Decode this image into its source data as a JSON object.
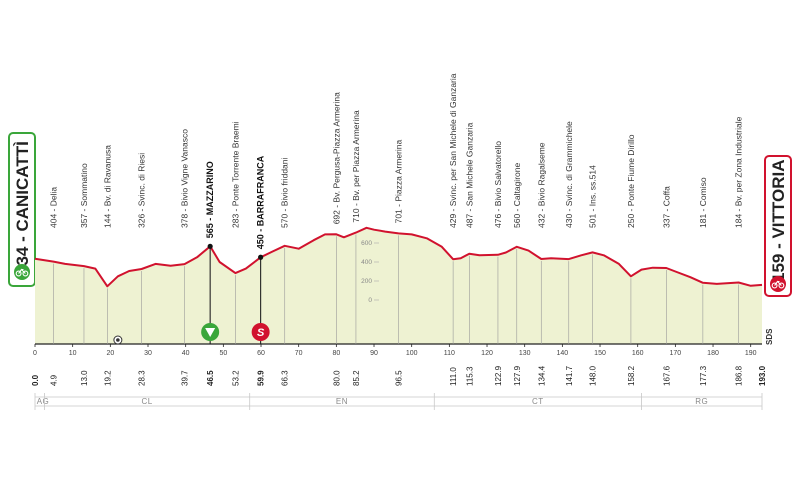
{
  "start": {
    "altitude": "434",
    "name": "CANICATTÌ",
    "label": "434 - CANICATTÌ"
  },
  "finish": {
    "altitude": "159",
    "name": "VITTORIA",
    "label": "159 - VITTORIA"
  },
  "sds_label": "SDS",
  "colors": {
    "profile_fill": "#eef2d2",
    "profile_line": "#d1122e",
    "start_border": "#3aa63a",
    "finish_border": "#d1122e"
  },
  "chart_data": {
    "type": "area",
    "title": "",
    "xlabel": "",
    "ylabel": "",
    "xlim": [
      0,
      193
    ],
    "x_ticks": [
      0,
      10,
      20,
      30,
      40,
      50,
      60,
      70,
      80,
      90,
      100,
      110,
      120,
      130,
      140,
      150,
      160,
      170,
      180,
      190
    ],
    "x_tick_labels": [
      "0",
      "10",
      "20",
      "30",
      "40",
      "50",
      "60",
      "70",
      "80",
      "90",
      "100",
      "110",
      "120",
      "130",
      "140",
      "150",
      "160",
      "170",
      "180",
      "190"
    ],
    "elevation_ticks": [
      "600",
      "400",
      "200",
      "0"
    ],
    "profile": {
      "km": [
        0,
        4.9,
        8,
        13,
        16,
        19.2,
        22,
        25,
        28.3,
        32,
        36,
        39.7,
        43,
        46.5,
        49,
        53.2,
        56,
        59.9,
        63,
        66.3,
        70,
        74,
        77,
        80,
        82,
        85.2,
        88,
        90,
        93,
        96.5,
        100,
        104,
        108,
        111,
        113,
        115.3,
        118,
        122.9,
        125,
        127.9,
        131,
        134.4,
        137,
        141.7,
        145,
        148,
        151,
        155,
        158.2,
        161,
        164,
        167.6,
        170,
        174,
        177.3,
        181,
        186.8,
        190,
        193
      ],
      "elev": [
        434,
        404,
        380,
        357,
        330,
        144,
        250,
        305,
        326,
        380,
        360,
        378,
        450,
        565,
        400,
        283,
        330,
        450,
        510,
        570,
        540,
        630,
        690,
        692,
        660,
        710,
        760,
        740,
        720,
        701,
        690,
        650,
        560,
        429,
        440,
        487,
        470,
        476,
        500,
        560,
        520,
        432,
        440,
        430,
        470,
        501,
        470,
        380,
        250,
        320,
        340,
        337,
        300,
        240,
        181,
        170,
        184,
        150,
        159
      ]
    },
    "waypoints": [
      {
        "km": 4.9,
        "label": "404 - Delia"
      },
      {
        "km": 13.0,
        "label": "357 - Sommatino"
      },
      {
        "km": 19.2,
        "label": "144 - Bv. di Ravanusa"
      },
      {
        "km": 28.3,
        "label": "326 - Svinc. di Riesi"
      },
      {
        "km": 39.7,
        "label": "378 - Bivio Vigne Vanasco"
      },
      {
        "km": 46.5,
        "label": "565 - MAZZARINO",
        "bold": true,
        "marker": "sprint"
      },
      {
        "km": 53.2,
        "label": "283 - Ponte Torrente Braemi"
      },
      {
        "km": 59.9,
        "label": "450 - BARRAFRANCA",
        "bold": true,
        "marker": "sprint"
      },
      {
        "km": 66.3,
        "label": "570 - Bivio friddani"
      },
      {
        "km": 80.0,
        "label": "692 - Bv. Pergusa-Piazza Armerina"
      },
      {
        "km": 85.2,
        "label": "710 - Bv. per Piazza Armerina"
      },
      {
        "km": 96.5,
        "label": "701 - Piazza Armerina"
      },
      {
        "km": 111.0,
        "label": "429 - Svinc. per San Michele di Ganzaria"
      },
      {
        "km": 115.3,
        "label": "487 - San Michele Ganzaria"
      },
      {
        "km": 122.9,
        "label": "476 - Bivio Salvatorello"
      },
      {
        "km": 127.9,
        "label": "560 - Caltagirone"
      },
      {
        "km": 134.4,
        "label": "432 - Bivio Ragalseme"
      },
      {
        "km": 141.7,
        "label": "430 - Svinc. di Grammichele"
      },
      {
        "km": 148.0,
        "label": "501 - Ins. ss.514"
      },
      {
        "km": 158.2,
        "label": "250 - Ponte Fiume Dirillo"
      },
      {
        "km": 167.6,
        "label": "337 - Coffa"
      },
      {
        "km": 177.3,
        "label": "181 - Comiso"
      },
      {
        "km": 186.8,
        "label": "184 - Bv. per Zona Industriale"
      }
    ],
    "cumulative_km": [
      {
        "km": 0,
        "label": "0.0",
        "bold": true
      },
      {
        "km": 4.9,
        "label": "4.9"
      },
      {
        "km": 13.0,
        "label": "13.0"
      },
      {
        "km": 19.2,
        "label": "19.2"
      },
      {
        "km": 28.3,
        "label": "28.3"
      },
      {
        "km": 39.7,
        "label": "39.7"
      },
      {
        "km": 46.5,
        "label": "46.5",
        "bold": true
      },
      {
        "km": 53.2,
        "label": "53.2"
      },
      {
        "km": 59.9,
        "label": "59.9",
        "bold": true
      },
      {
        "km": 66.3,
        "label": "66.3"
      },
      {
        "km": 80.0,
        "label": "80.0"
      },
      {
        "km": 85.2,
        "label": "85.2"
      },
      {
        "km": 96.5,
        "label": "96.5"
      },
      {
        "km": 111.0,
        "label": "111.0"
      },
      {
        "km": 115.3,
        "label": "115.3"
      },
      {
        "km": 122.9,
        "label": "122.9"
      },
      {
        "km": 127.9,
        "label": "127.9"
      },
      {
        "km": 134.4,
        "label": "134.4"
      },
      {
        "km": 141.7,
        "label": "141.7"
      },
      {
        "km": 148.0,
        "label": "148.0"
      },
      {
        "km": 158.2,
        "label": "158.2"
      },
      {
        "km": 167.6,
        "label": "167.6"
      },
      {
        "km": 177.3,
        "label": "177.3"
      },
      {
        "km": 186.8,
        "label": "186.8"
      },
      {
        "km": 193,
        "label": "193.0",
        "bold": true
      }
    ],
    "provinces": [
      {
        "label": "AG",
        "from": 0,
        "to": 2.5
      },
      {
        "label": "CL",
        "from": 2.5,
        "to": 57
      },
      {
        "label": "EN",
        "from": 57,
        "to": 106
      },
      {
        "label": "CT",
        "from": 106,
        "to": 161
      },
      {
        "label": "RG",
        "from": 161,
        "to": 193
      }
    ],
    "markers": [
      {
        "km": 22,
        "type": "circle-target"
      },
      {
        "km": 46.5,
        "type": "green-triangle"
      },
      {
        "km": 59.9,
        "type": "red-s"
      }
    ]
  }
}
